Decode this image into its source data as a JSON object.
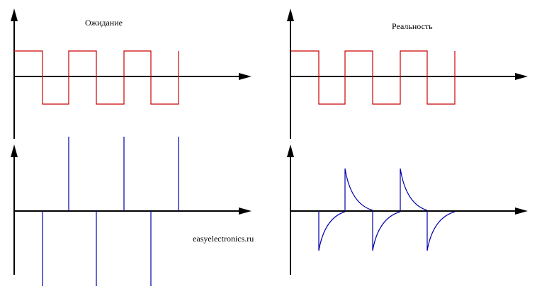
{
  "panels": {
    "ideal_title": "Ожидание",
    "real_title": "Реальность"
  },
  "watermark": "easyelectronics.ru",
  "colors": {
    "square_wave": "#cc0000",
    "spike_wave": "#0000aa",
    "axes": "#000000",
    "background": "#ffffff"
  }
}
